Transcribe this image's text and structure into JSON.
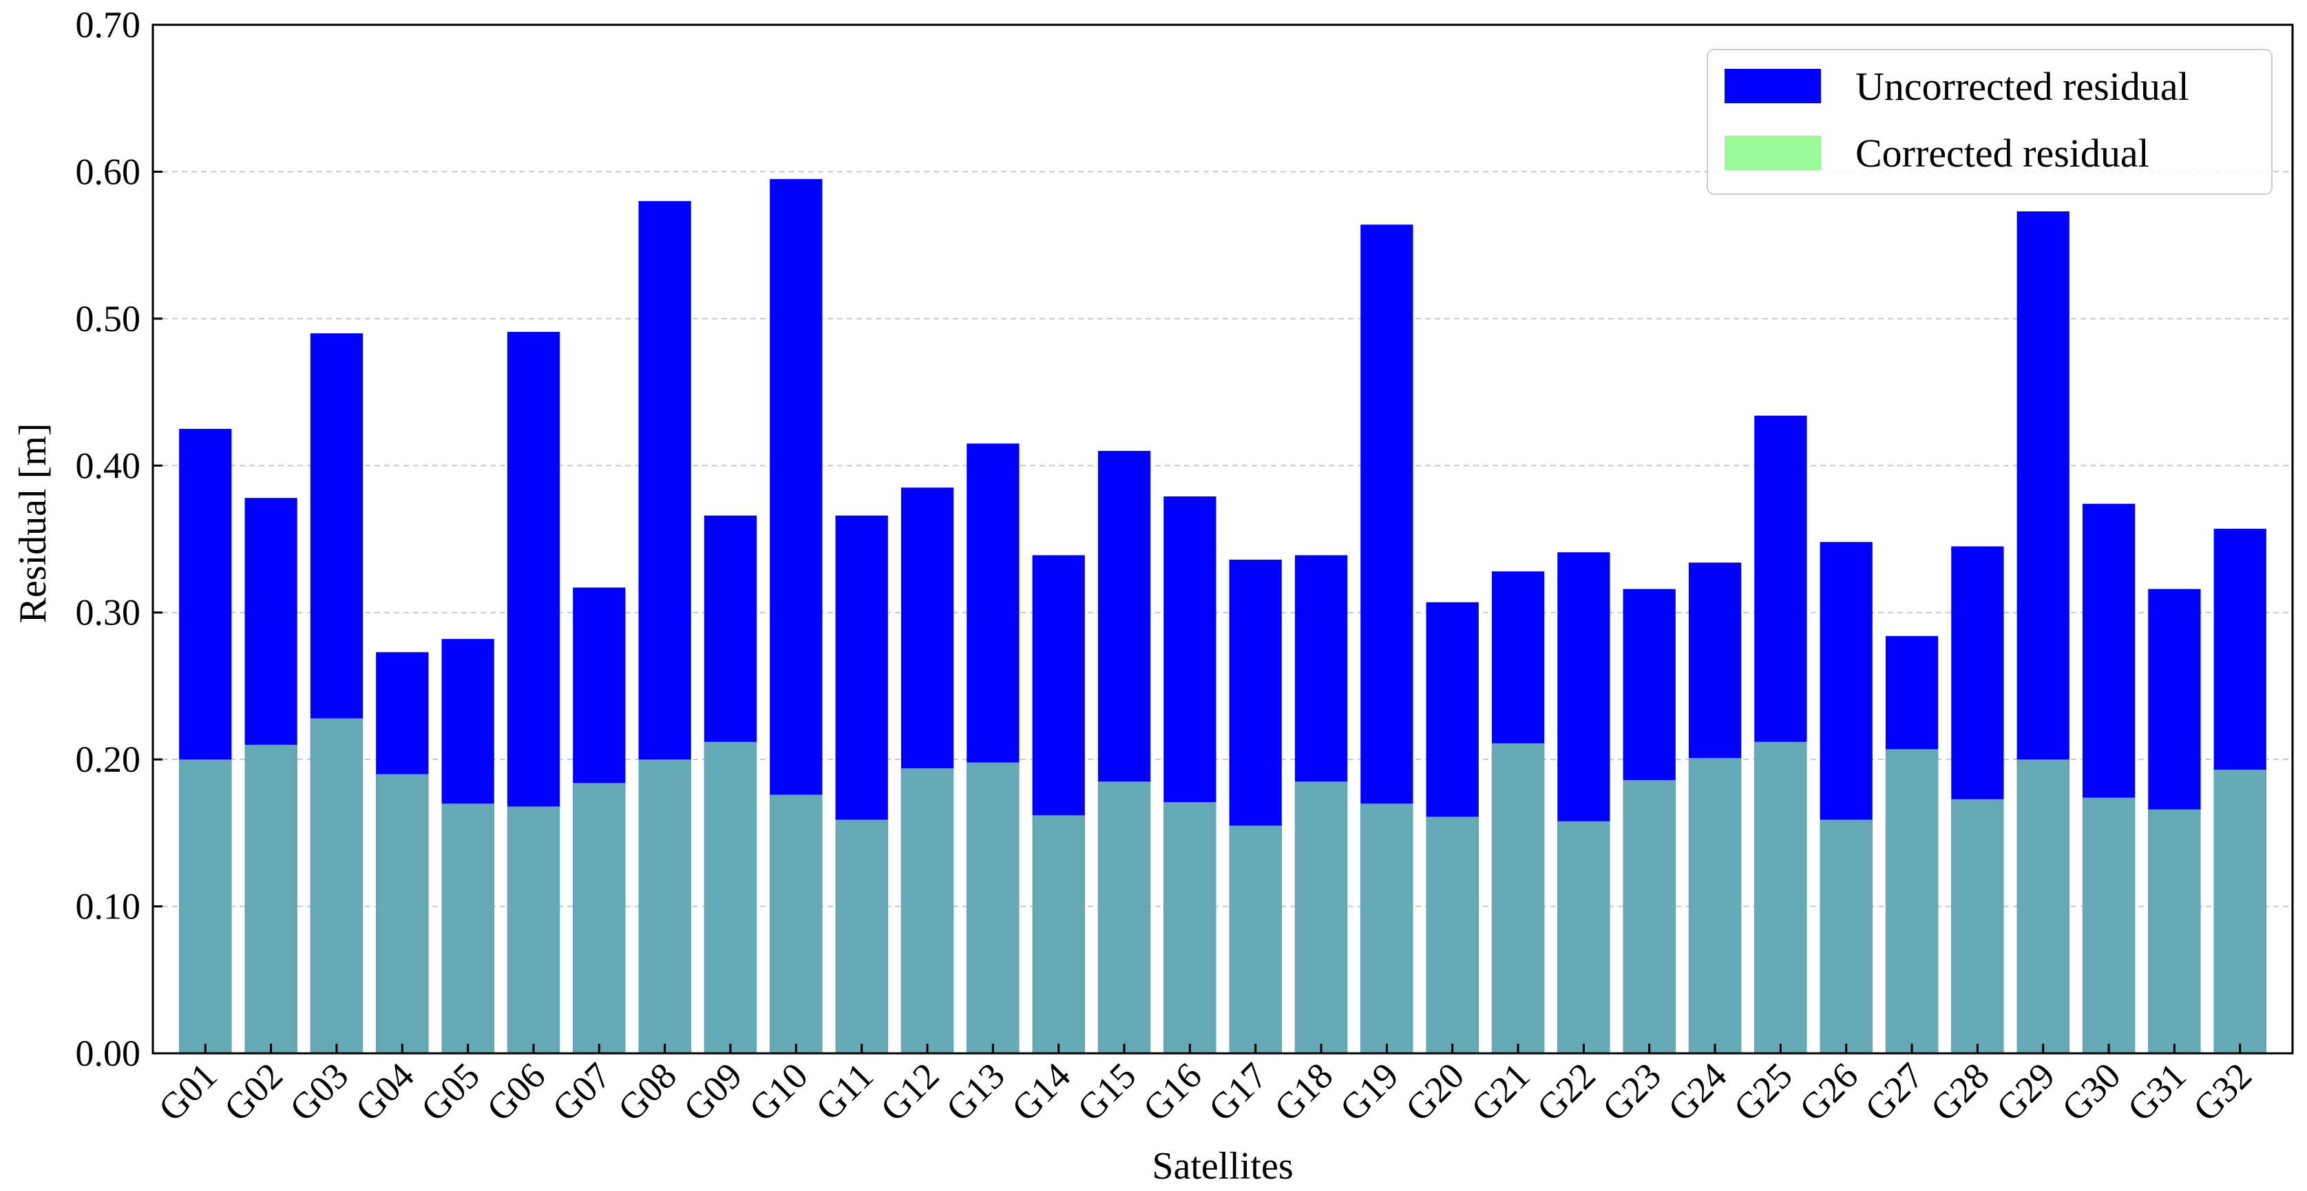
{
  "chart_data": {
    "type": "bar",
    "xlabel": "Satellites",
    "ylabel": "Residual [m]",
    "ylim": [
      0,
      0.7
    ],
    "yticks": [
      "0.00",
      "0.10",
      "0.20",
      "0.30",
      "0.40",
      "0.50",
      "0.60",
      "0.70"
    ],
    "grid": "horizontal dashed",
    "legend_position": "top-right",
    "categories": [
      "G01",
      "G02",
      "G03",
      "G04",
      "G05",
      "G06",
      "G07",
      "G08",
      "G09",
      "G10",
      "G11",
      "G12",
      "G13",
      "G14",
      "G15",
      "G16",
      "G17",
      "G18",
      "G19",
      "G20",
      "G21",
      "G22",
      "G23",
      "G24",
      "G25",
      "G26",
      "G27",
      "G28",
      "G29",
      "G30",
      "G31",
      "G32"
    ],
    "series": [
      {
        "name": "Uncorrected residual",
        "color": "#0000ff",
        "values": [
          0.425,
          0.378,
          0.49,
          0.273,
          0.282,
          0.491,
          0.317,
          0.58,
          0.366,
          0.595,
          0.366,
          0.385,
          0.415,
          0.339,
          0.41,
          0.379,
          0.336,
          0.339,
          0.564,
          0.307,
          0.328,
          0.341,
          0.316,
          0.334,
          0.434,
          0.348,
          0.284,
          0.345,
          0.573,
          0.374,
          0.316,
          0.357
        ]
      },
      {
        "name": "Corrected residual",
        "color": "#98fb98",
        "overlap_color": "#64a9b4",
        "values": [
          0.2,
          0.21,
          0.228,
          0.19,
          0.17,
          0.168,
          0.184,
          0.2,
          0.212,
          0.176,
          0.159,
          0.194,
          0.198,
          0.162,
          0.185,
          0.171,
          0.155,
          0.185,
          0.17,
          0.161,
          0.211,
          0.158,
          0.186,
          0.201,
          0.212,
          0.159,
          0.207,
          0.173,
          0.2,
          0.174,
          0.166,
          0.193
        ]
      }
    ]
  }
}
